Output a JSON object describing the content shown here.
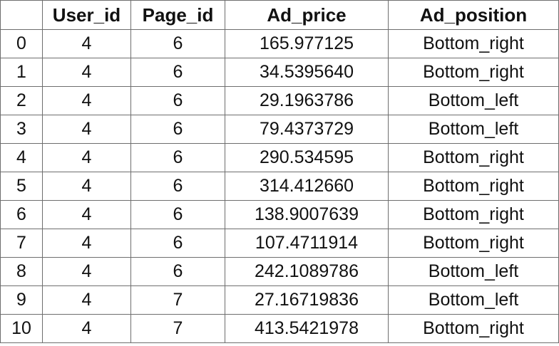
{
  "table": {
    "headers": [
      "",
      "User_id",
      "Page_id",
      "Ad_price",
      "Ad_position"
    ],
    "rows": [
      [
        "0",
        "4",
        "6",
        "165.977125",
        "Bottom_right"
      ],
      [
        "1",
        "4",
        "6",
        "34.5395640",
        "Bottom_right"
      ],
      [
        "2",
        "4",
        "6",
        "29.1963786",
        "Bottom_left"
      ],
      [
        "3",
        "4",
        "6",
        "79.4373729",
        "Bottom_left"
      ],
      [
        "4",
        "4",
        "6",
        "290.534595",
        "Bottom_right"
      ],
      [
        "5",
        "4",
        "6",
        "314.412660",
        "Bottom_right"
      ],
      [
        "6",
        "4",
        "6",
        "138.9007639",
        "Bottom_right"
      ],
      [
        "7",
        "4",
        "6",
        "107.4711914",
        "Bottom_right"
      ],
      [
        "8",
        "4",
        "6",
        "242.1089786",
        "Bottom_left"
      ],
      [
        "9",
        "4",
        "7",
        "27.16719836",
        "Bottom_left"
      ],
      [
        "10",
        "4",
        "7",
        "413.5421978",
        "Bottom_right"
      ]
    ]
  }
}
